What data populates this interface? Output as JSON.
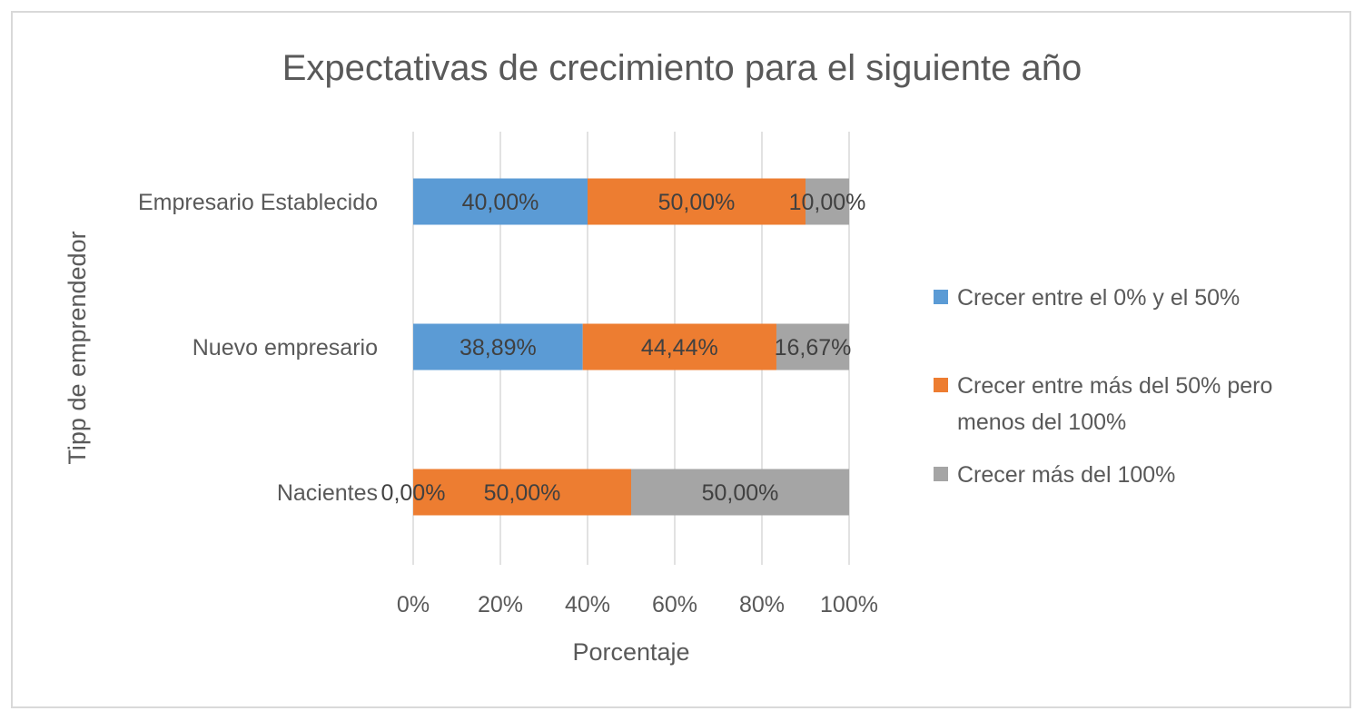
{
  "chart_data": {
    "type": "bar",
    "orientation": "horizontal",
    "stacked": "percent",
    "title": "Expectativas de crecimiento para el siguiente año",
    "xlabel": "Porcentaje",
    "ylabel": "Tipp de emprendedor",
    "xlim": [
      0,
      100
    ],
    "x_ticks": [
      "0%",
      "20%",
      "40%",
      "60%",
      "80%",
      "100%"
    ],
    "grid": true,
    "legend_position": "right",
    "categories": [
      "Empresario Establecido",
      "Nuevo empresario",
      "Nacientes"
    ],
    "series": [
      {
        "name": "Crecer entre el 0% y el 50%",
        "color": "#5b9bd5",
        "values": [
          40.0,
          38.89,
          0.0
        ],
        "labels": [
          "40,00%",
          "38,89%",
          "0,00%"
        ]
      },
      {
        "name": "Crecer entre más del 50% pero menos del 100%",
        "name_lines": [
          "Crecer entre más del 50% pero",
          "menos del 100%"
        ],
        "color": "#ed7d31",
        "values": [
          50.0,
          44.44,
          50.0
        ],
        "labels": [
          "50,00%",
          "44,44%",
          "50,00%"
        ]
      },
      {
        "name": "Crecer más del 100%",
        "color": "#a5a5a5",
        "values": [
          10.0,
          16.67,
          50.0
        ],
        "labels": [
          "10,00%",
          "16,67%",
          "50,00%"
        ]
      }
    ]
  }
}
